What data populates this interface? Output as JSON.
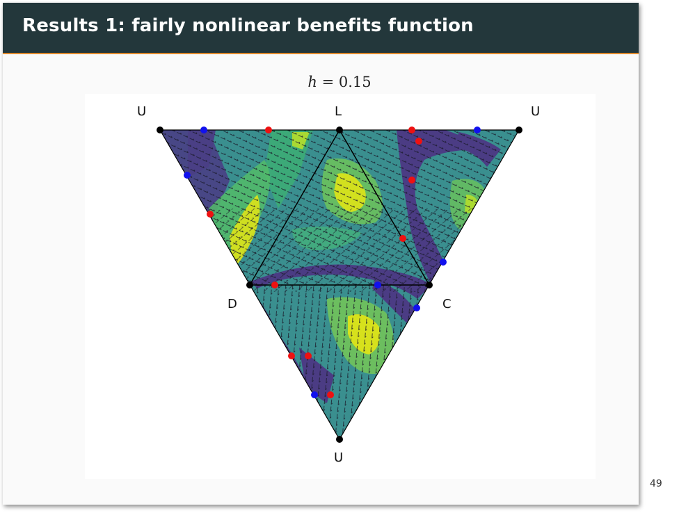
{
  "slide": {
    "title": "Results 1: fairly nonlinear benefits function",
    "page_number": "49"
  },
  "figure": {
    "title_var": "h",
    "title_rest": " = 0.15",
    "vertex_labels": {
      "U_top_left": "U",
      "L": "L",
      "U_top_right": "U",
      "D": "D",
      "C": "C",
      "U_bottom": "U"
    },
    "colors": {
      "red_point": "#ee1111",
      "blue_point": "#1111ee",
      "black_point": "#000000",
      "low": "#46327e",
      "mid": "#2a8f8a",
      "high": "#dde318"
    }
  }
}
